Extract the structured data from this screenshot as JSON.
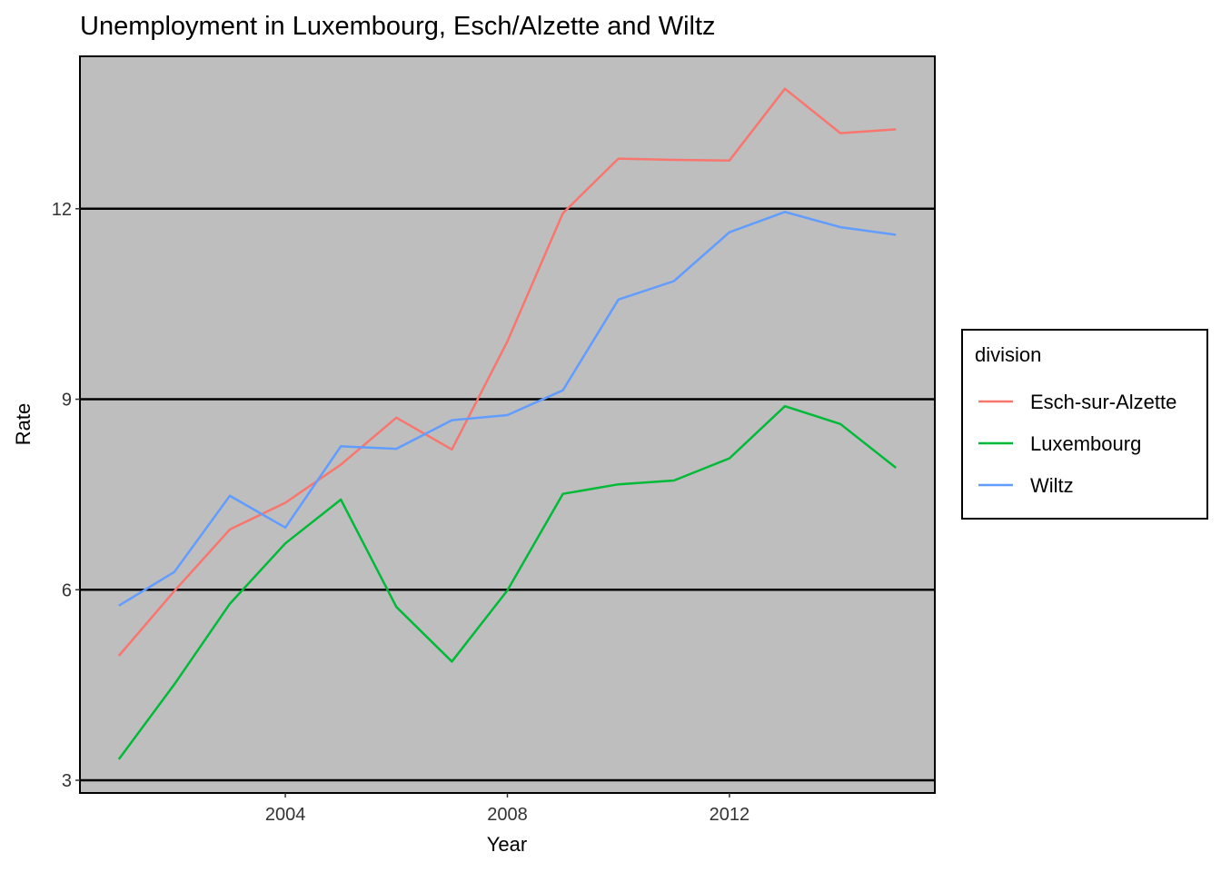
{
  "chart_data": {
    "type": "line",
    "title": "Unemployment in Luxembourg, Esch/Alzette and Wiltz",
    "xlabel": "Year",
    "ylabel": "Rate",
    "x": [
      2001,
      2002,
      2003,
      2004,
      2005,
      2006,
      2007,
      2008,
      2009,
      2010,
      2011,
      2012,
      2013,
      2014,
      2015
    ],
    "xlim": [
      2000.3,
      2015.7
    ],
    "ylim": [
      2.8,
      14.4
    ],
    "x_ticks": [
      2004,
      2008,
      2012
    ],
    "x_tick_labels": [
      "2004",
      "2008",
      "2012"
    ],
    "y_ticks": [
      3,
      6,
      9,
      12
    ],
    "y_tick_labels": [
      "3",
      "6",
      "9",
      "12"
    ],
    "grid": "horizontal major lines",
    "panel_background": "#bebebe",
    "legend": {
      "title": "division",
      "position": "right"
    },
    "series": [
      {
        "name": "Esch-sur-Alzette",
        "color": "#F8766D",
        "values": [
          4.96,
          5.98,
          6.95,
          7.37,
          7.97,
          8.71,
          8.21,
          9.91,
          11.93,
          12.79,
          12.77,
          12.76,
          13.89,
          13.19,
          13.25
        ]
      },
      {
        "name": "Luxembourg",
        "color": "#00BA38",
        "values": [
          3.33,
          4.51,
          5.78,
          6.73,
          7.42,
          5.73,
          4.87,
          5.99,
          7.51,
          7.66,
          7.72,
          8.07,
          8.89,
          8.61,
          7.92
        ]
      },
      {
        "name": "Wiltz",
        "color": "#619CFF",
        "values": [
          5.75,
          6.28,
          7.48,
          6.98,
          8.26,
          8.22,
          8.67,
          8.75,
          9.14,
          10.57,
          10.86,
          11.63,
          11.95,
          11.71,
          11.59
        ]
      }
    ]
  }
}
